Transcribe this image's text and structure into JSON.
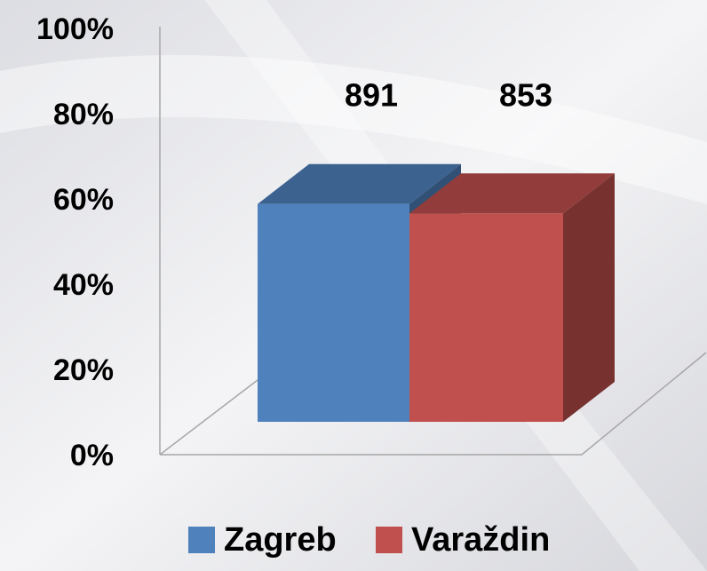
{
  "chart_data": {
    "type": "bar3d",
    "series": [
      {
        "name": "Zagreb",
        "color": "#4f81bd",
        "values": [
          51.1
        ],
        "data_labels": [
          "891"
        ]
      },
      {
        "name": "Varaždin",
        "color": "#c0504d",
        "values": [
          48.9
        ],
        "data_labels": [
          "853"
        ]
      }
    ],
    "ylim": [
      0,
      100
    ],
    "yticks": [
      {
        "value": 0,
        "label": "0%"
      },
      {
        "value": 20,
        "label": "20%"
      },
      {
        "value": 40,
        "label": "40%"
      },
      {
        "value": 60,
        "label": "60%"
      },
      {
        "value": 80,
        "label": "80%"
      },
      {
        "value": 100,
        "label": "100%"
      }
    ],
    "legend": "bottom"
  }
}
